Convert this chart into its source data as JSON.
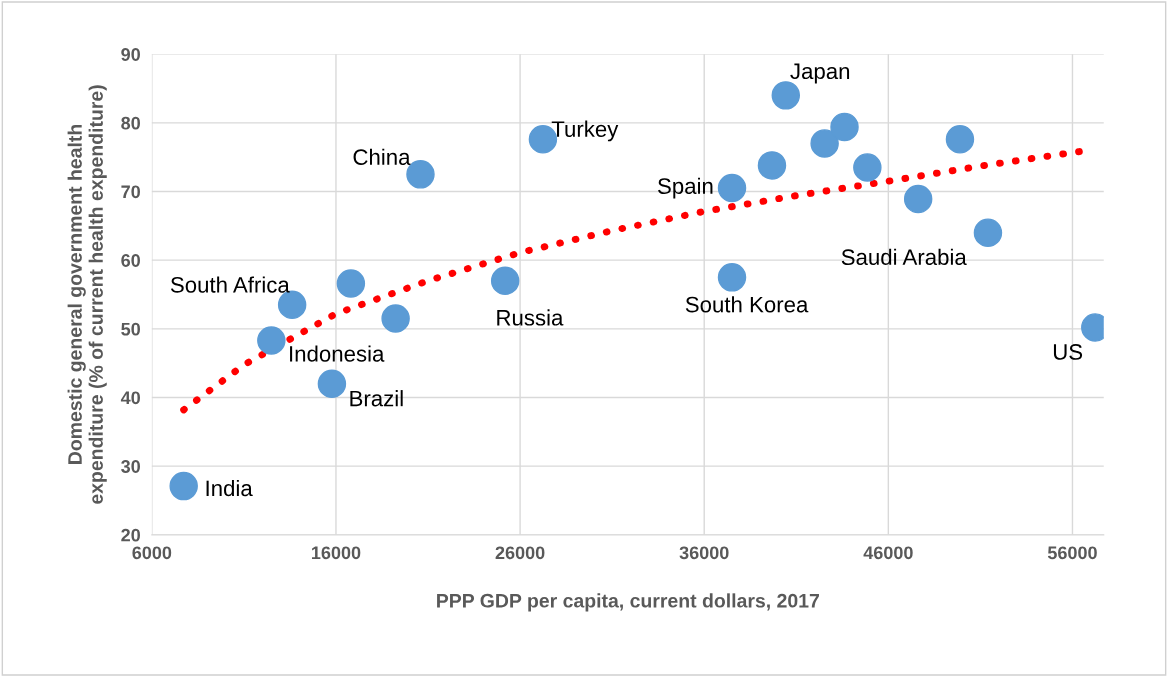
{
  "chart_data": {
    "type": "scatter",
    "xlabel": "PPP GDP per capita, current dollars, 2017",
    "ylabel": "Domestic general government health\nexpenditure (% of current health expenditure)",
    "series": [
      {
        "color": "#5b9bd5",
        "marker": "circle",
        "x": [
          7730,
          12490,
          13620,
          15780,
          16810,
          19240,
          20590,
          25190,
          27240,
          37510,
          37510,
          39680,
          40430,
          42540,
          43620,
          44860,
          47620,
          49890,
          51410,
          57240
        ],
        "values": [
          27.1,
          48.3,
          53.5,
          42.0,
          56.6,
          51.5,
          72.5,
          57.0,
          77.6,
          70.5,
          57.5,
          73.8,
          84.0,
          77.0,
          79.4,
          73.5,
          68.9,
          77.6,
          64.0,
          50.2
        ]
      },
      {
        "type": "line",
        "color": "#ff0000",
        "line_style": "dotted",
        "x": [
          7730,
          11030,
          16000,
          21000,
          26000,
          31000,
          36000,
          41000,
          46000,
          51000,
          56600
        ],
        "values": [
          38.2,
          44.8,
          52.2,
          57.0,
          61.1,
          64.3,
          67.1,
          69.4,
          71.5,
          73.7,
          75.9
        ]
      }
    ],
    "annotations": [
      {
        "text": "India",
        "x": 7730,
        "y": 27.1
      },
      {
        "text": "Indonesia",
        "x": 12490,
        "y": 48.3
      },
      {
        "text": "South Africa",
        "x": 13620,
        "y": 53.5
      },
      {
        "text": "Brazil",
        "x": 15780,
        "y": 42.0
      },
      {
        "text": "China",
        "x": 20590,
        "y": 72.5
      },
      {
        "text": "Russia",
        "x": 25190,
        "y": 57.0
      },
      {
        "text": "Turkey",
        "x": 27240,
        "y": 77.6
      },
      {
        "text": "Spain",
        "x": 37510,
        "y": 70.5
      },
      {
        "text": "South Korea",
        "x": 37510,
        "y": 57.5
      },
      {
        "text": "Japan",
        "x": 40430,
        "y": 84.0
      },
      {
        "text": "Saudi Arabia",
        "x": 51410,
        "y": 64.0
      },
      {
        "text": "US",
        "x": 57240,
        "y": 50.2
      }
    ],
    "xlim": [
      6000,
      57700
    ],
    "xticks": [
      6000,
      16000,
      26000,
      36000,
      46000,
      56000
    ],
    "ylim": [
      20,
      90
    ],
    "yticks": [
      20,
      30,
      40,
      50,
      60,
      70,
      80,
      90
    ],
    "grid": true
  }
}
